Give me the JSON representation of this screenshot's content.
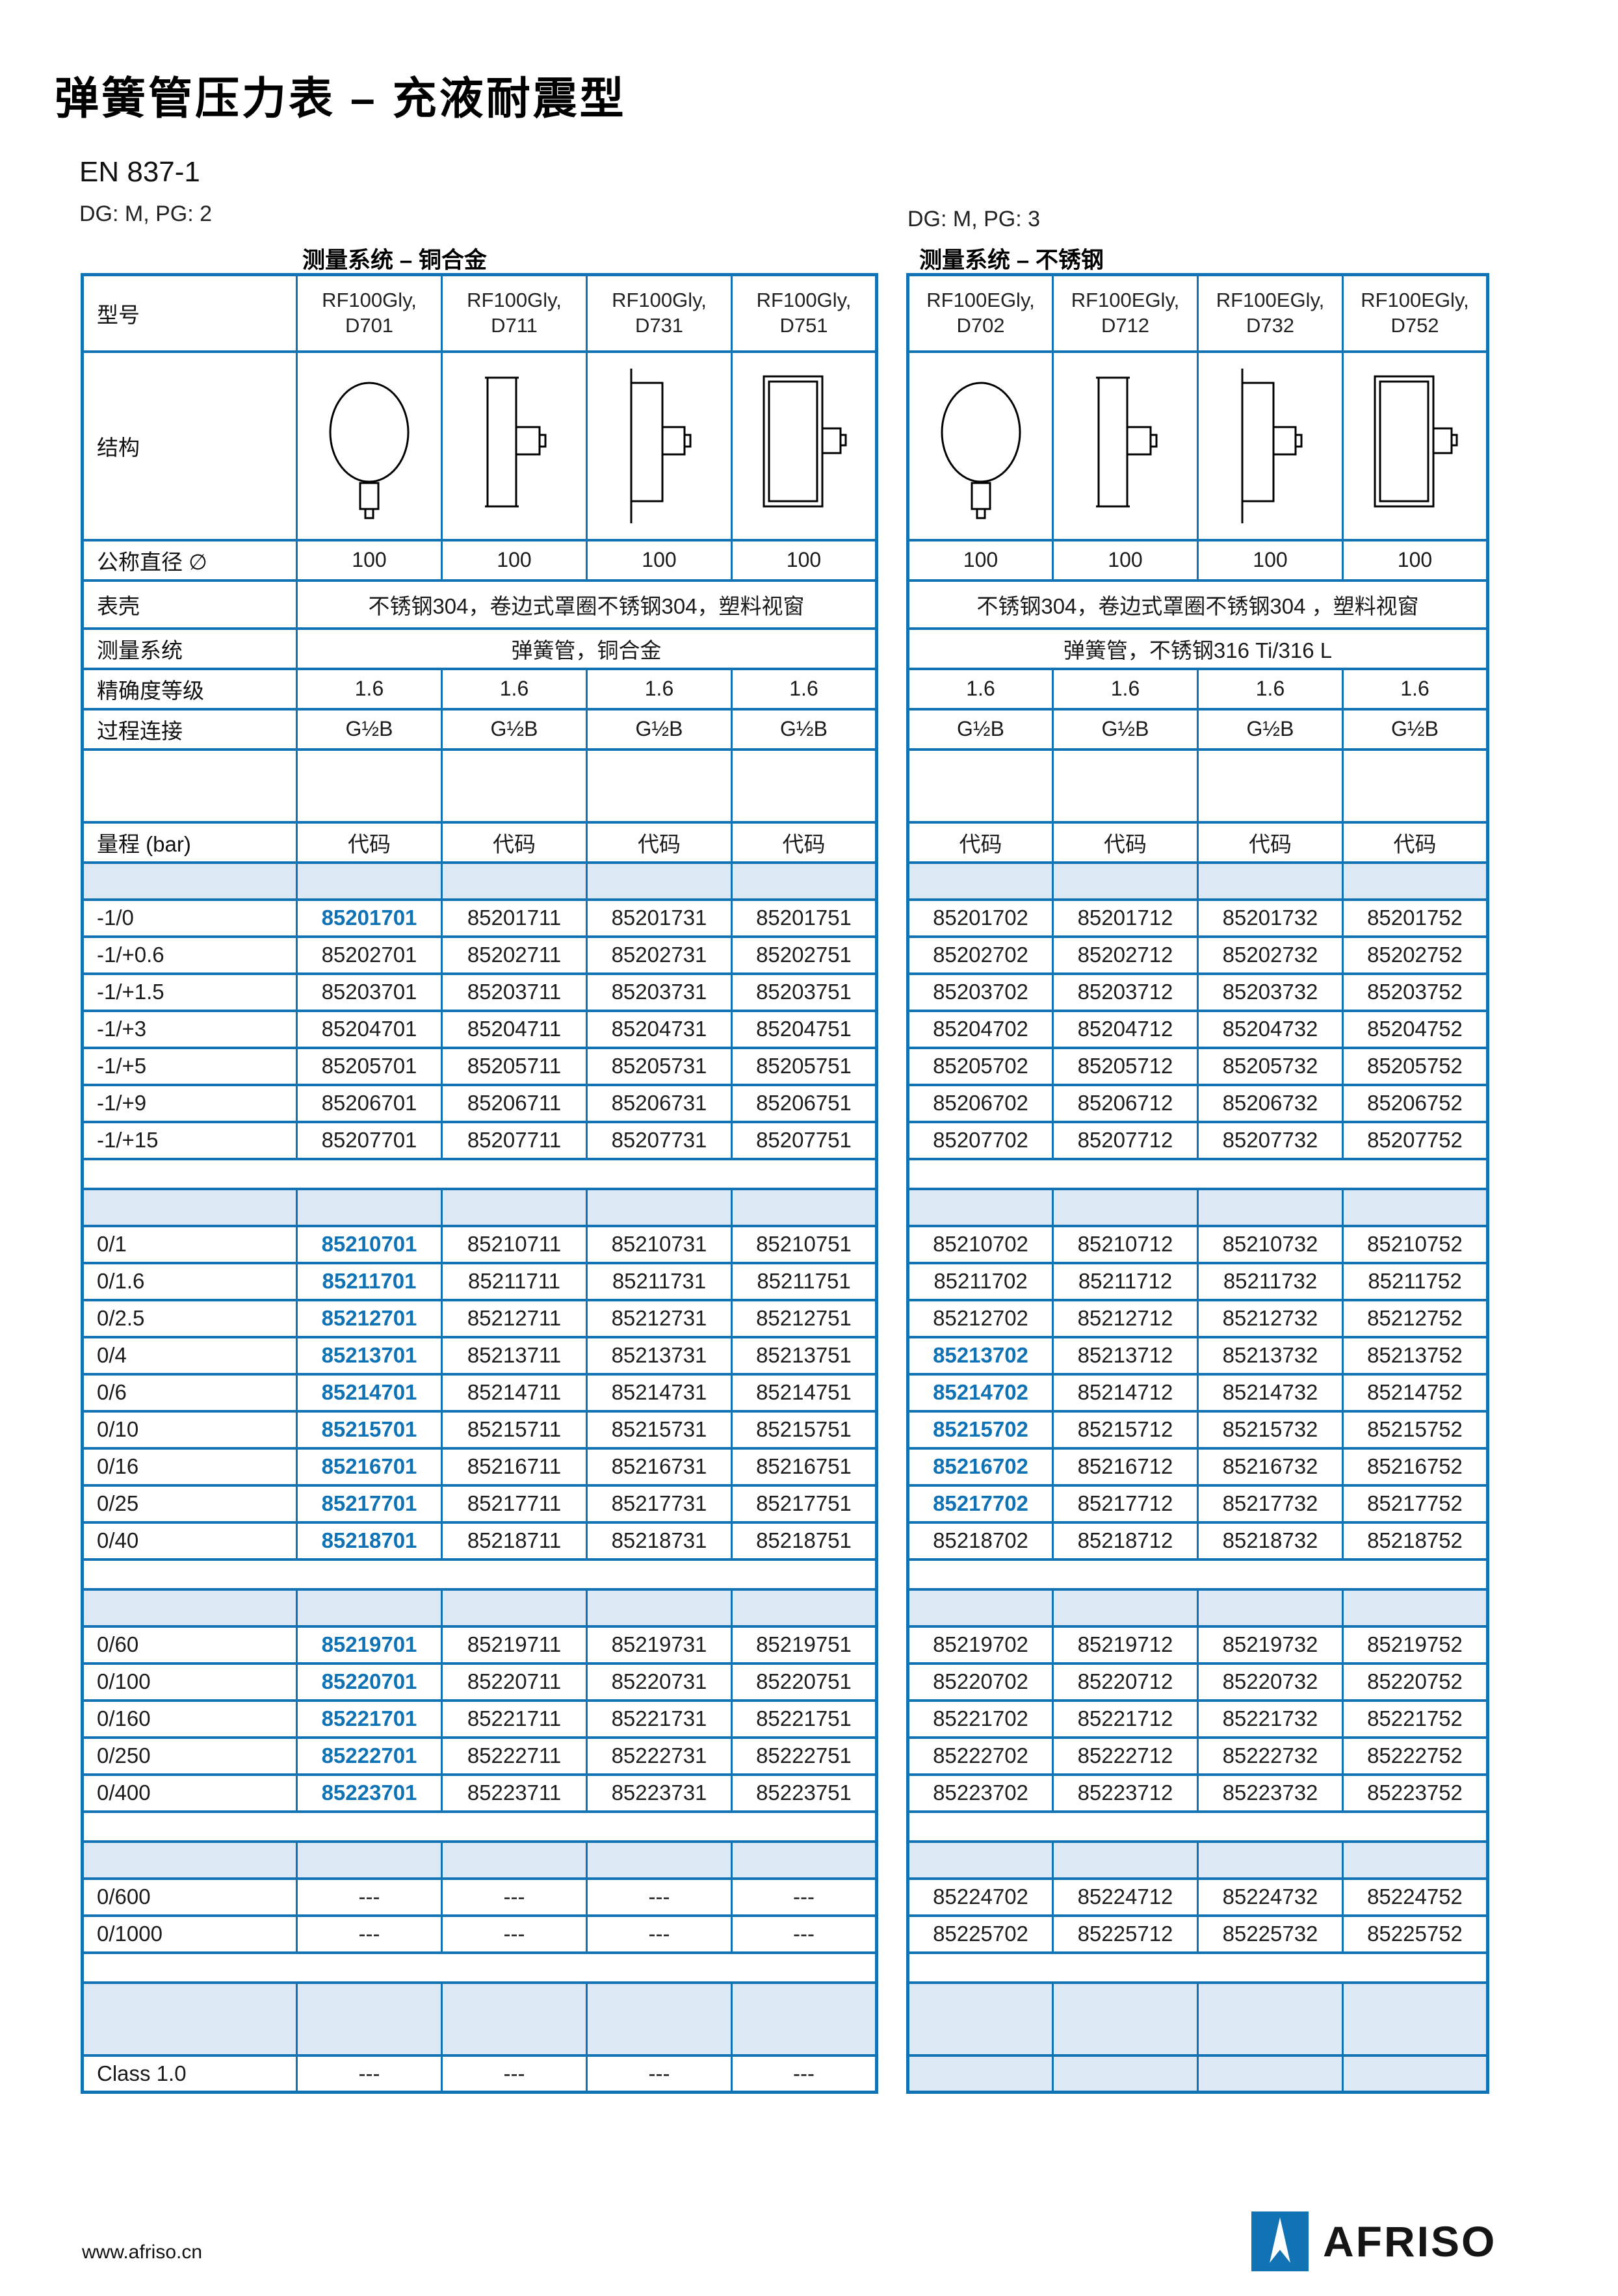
{
  "page": {
    "title": "弹簧管压力表 – 充液耐震型",
    "standard": "EN 837-1"
  },
  "footer": {
    "url": "www.afriso.cn",
    "brand": "AFRISO"
  },
  "colors": {
    "accent": "#1173b4",
    "shade": "#dce9f5",
    "highlight_code": "#0f72b5"
  },
  "left_table": {
    "dg": "DG: M, PG: 2",
    "system_title": "测量系统 – 铜合金",
    "spec_labels": {
      "model": "型号",
      "structure": "结构",
      "diameter": "公称直径 ∅",
      "case": "表壳",
      "system": "测量系统",
      "accuracy": "精确度等级",
      "connection": "过程连接",
      "range": "量程 (bar)",
      "code": "代码"
    },
    "models": [
      {
        "l1": "RF100Gly,",
        "l2": "D701",
        "drawing": "gauge-front-view-drawing"
      },
      {
        "l1": "RF100Gly,",
        "l2": "D711",
        "drawing": "gauge-back-connection-drawing"
      },
      {
        "l1": "RF100Gly,",
        "l2": "D731",
        "drawing": "gauge-surface-mount-drawing"
      },
      {
        "l1": "RF100Gly,",
        "l2": "D751",
        "drawing": "gauge-front-flange-drawing"
      }
    ],
    "diameter": [
      "100",
      "100",
      "100",
      "100"
    ],
    "case_value": "不锈钢304，卷边式罩圈不锈钢304，塑料视窗",
    "system_value": "弹簧管，铜合金",
    "accuracy": [
      "1.6",
      "1.6",
      "1.6",
      "1.6"
    ],
    "connection": [
      "G½B",
      "G½B",
      "G½B",
      "G½B"
    ],
    "code_headers": [
      "代码",
      "代码",
      "代码",
      "代码"
    ],
    "sections": [
      {
        "rows": [
          {
            "range": "-1/0",
            "codes": [
              "85201701",
              "85201711",
              "85201731",
              "85201751"
            ],
            "hl": true
          },
          {
            "range": "-1/+0.6",
            "codes": [
              "85202701",
              "85202711",
              "85202731",
              "85202751"
            ],
            "hl": false
          },
          {
            "range": "-1/+1.5",
            "codes": [
              "85203701",
              "85203711",
              "85203731",
              "85203751"
            ],
            "hl": false
          },
          {
            "range": "-1/+3",
            "codes": [
              "85204701",
              "85204711",
              "85204731",
              "85204751"
            ],
            "hl": false
          },
          {
            "range": "-1/+5",
            "codes": [
              "85205701",
              "85205711",
              "85205731",
              "85205751"
            ],
            "hl": false
          },
          {
            "range": "-1/+9",
            "codes": [
              "85206701",
              "85206711",
              "85206731",
              "85206751"
            ],
            "hl": false
          },
          {
            "range": "-1/+15",
            "codes": [
              "85207701",
              "85207711",
              "85207731",
              "85207751"
            ],
            "hl": false
          }
        ]
      },
      {
        "rows": [
          {
            "range": "0/1",
            "codes": [
              "85210701",
              "85210711",
              "85210731",
              "85210751"
            ],
            "hl": true
          },
          {
            "range": "0/1.6",
            "codes": [
              "85211701",
              "85211711",
              "85211731",
              "85211751"
            ],
            "hl": true
          },
          {
            "range": "0/2.5",
            "codes": [
              "85212701",
              "85212711",
              "85212731",
              "85212751"
            ],
            "hl": true
          },
          {
            "range": "0/4",
            "codes": [
              "85213701",
              "85213711",
              "85213731",
              "85213751"
            ],
            "hl": true
          },
          {
            "range": "0/6",
            "codes": [
              "85214701",
              "85214711",
              "85214731",
              "85214751"
            ],
            "hl": true
          },
          {
            "range": "0/10",
            "codes": [
              "85215701",
              "85215711",
              "85215731",
              "85215751"
            ],
            "hl": true
          },
          {
            "range": "0/16",
            "codes": [
              "85216701",
              "85216711",
              "85216731",
              "85216751"
            ],
            "hl": true
          },
          {
            "range": "0/25",
            "codes": [
              "85217701",
              "85217711",
              "85217731",
              "85217751"
            ],
            "hl": true
          },
          {
            "range": "0/40",
            "codes": [
              "85218701",
              "85218711",
              "85218731",
              "85218751"
            ],
            "hl": true
          }
        ]
      },
      {
        "rows": [
          {
            "range": "0/60",
            "codes": [
              "85219701",
              "85219711",
              "85219731",
              "85219751"
            ],
            "hl": true
          },
          {
            "range": "0/100",
            "codes": [
              "85220701",
              "85220711",
              "85220731",
              "85220751"
            ],
            "hl": true
          },
          {
            "range": "0/160",
            "codes": [
              "85221701",
              "85221711",
              "85221731",
              "85221751"
            ],
            "hl": true
          },
          {
            "range": "0/250",
            "codes": [
              "85222701",
              "85222711",
              "85222731",
              "85222751"
            ],
            "hl": true
          },
          {
            "range": "0/400",
            "codes": [
              "85223701",
              "85223711",
              "85223731",
              "85223751"
            ],
            "hl": true
          }
        ]
      },
      {
        "rows": [
          {
            "range": "0/600",
            "codes": [
              "---",
              "---",
              "---",
              "---"
            ],
            "hl": false
          },
          {
            "range": "0/1000",
            "codes": [
              "---",
              "---",
              "---",
              "---"
            ],
            "hl": false
          }
        ]
      }
    ],
    "class_row": {
      "label": "Class 1.0",
      "values": [
        "---",
        "---",
        "---",
        "---"
      ],
      "shaded": false
    }
  },
  "right_table": {
    "dg": "DG: M, PG: 3",
    "system_title": "测量系统 – 不锈钢",
    "models": [
      {
        "l1": "RF100EGly,",
        "l2": "D702",
        "drawing": "gauge-front-view-drawing"
      },
      {
        "l1": "RF100EGly,",
        "l2": "D712",
        "drawing": "gauge-back-connection-drawing"
      },
      {
        "l1": "RF100EGly,",
        "l2": "D732",
        "drawing": "gauge-surface-mount-drawing"
      },
      {
        "l1": "RF100EGly,",
        "l2": "D752",
        "drawing": "gauge-front-flange-drawing"
      }
    ],
    "diameter": [
      "100",
      "100",
      "100",
      "100"
    ],
    "case_value": "不锈钢304，卷边式罩圈不锈钢304 ，塑料视窗",
    "system_value": "弹簧管，不锈钢316 Ti/316 L",
    "accuracy": [
      "1.6",
      "1.6",
      "1.6",
      "1.6"
    ],
    "connection": [
      "G½B",
      "G½B",
      "G½B",
      "G½B"
    ],
    "code_headers": [
      "代码",
      "代码",
      "代码",
      "代码"
    ],
    "sections": [
      {
        "rows": [
          {
            "codes": [
              "85201702",
              "85201712",
              "85201732",
              "85201752"
            ],
            "hl": false
          },
          {
            "codes": [
              "85202702",
              "85202712",
              "85202732",
              "85202752"
            ],
            "hl": false
          },
          {
            "codes": [
              "85203702",
              "85203712",
              "85203732",
              "85203752"
            ],
            "hl": false
          },
          {
            "codes": [
              "85204702",
              "85204712",
              "85204732",
              "85204752"
            ],
            "hl": false
          },
          {
            "codes": [
              "85205702",
              "85205712",
              "85205732",
              "85205752"
            ],
            "hl": false
          },
          {
            "codes": [
              "85206702",
              "85206712",
              "85206732",
              "85206752"
            ],
            "hl": false
          },
          {
            "codes": [
              "85207702",
              "85207712",
              "85207732",
              "85207752"
            ],
            "hl": false
          }
        ]
      },
      {
        "rows": [
          {
            "codes": [
              "85210702",
              "85210712",
              "85210732",
              "85210752"
            ],
            "hl": false
          },
          {
            "codes": [
              "85211702",
              "85211712",
              "85211732",
              "85211752"
            ],
            "hl": false
          },
          {
            "codes": [
              "85212702",
              "85212712",
              "85212732",
              "85212752"
            ],
            "hl": false
          },
          {
            "codes": [
              "85213702",
              "85213712",
              "85213732",
              "85213752"
            ],
            "hl": true
          },
          {
            "codes": [
              "85214702",
              "85214712",
              "85214732",
              "85214752"
            ],
            "hl": true
          },
          {
            "codes": [
              "85215702",
              "85215712",
              "85215732",
              "85215752"
            ],
            "hl": true
          },
          {
            "codes": [
              "85216702",
              "85216712",
              "85216732",
              "85216752"
            ],
            "hl": true
          },
          {
            "codes": [
              "85217702",
              "85217712",
              "85217732",
              "85217752"
            ],
            "hl": true
          },
          {
            "codes": [
              "85218702",
              "85218712",
              "85218732",
              "85218752"
            ],
            "hl": false
          }
        ]
      },
      {
        "rows": [
          {
            "codes": [
              "85219702",
              "85219712",
              "85219732",
              "85219752"
            ],
            "hl": false
          },
          {
            "codes": [
              "85220702",
              "85220712",
              "85220732",
              "85220752"
            ],
            "hl": false
          },
          {
            "codes": [
              "85221702",
              "85221712",
              "85221732",
              "85221752"
            ],
            "hl": false
          },
          {
            "codes": [
              "85222702",
              "85222712",
              "85222732",
              "85222752"
            ],
            "hl": false
          },
          {
            "codes": [
              "85223702",
              "85223712",
              "85223732",
              "85223752"
            ],
            "hl": false
          }
        ]
      },
      {
        "rows": [
          {
            "codes": [
              "85224702",
              "85224712",
              "85224732",
              "85224752"
            ],
            "hl": false
          },
          {
            "codes": [
              "85225702",
              "85225712",
              "85225732",
              "85225752"
            ],
            "hl": false
          }
        ]
      }
    ],
    "class_row": {
      "label": "",
      "values": [
        "",
        "",
        "",
        ""
      ],
      "shaded": true
    }
  }
}
